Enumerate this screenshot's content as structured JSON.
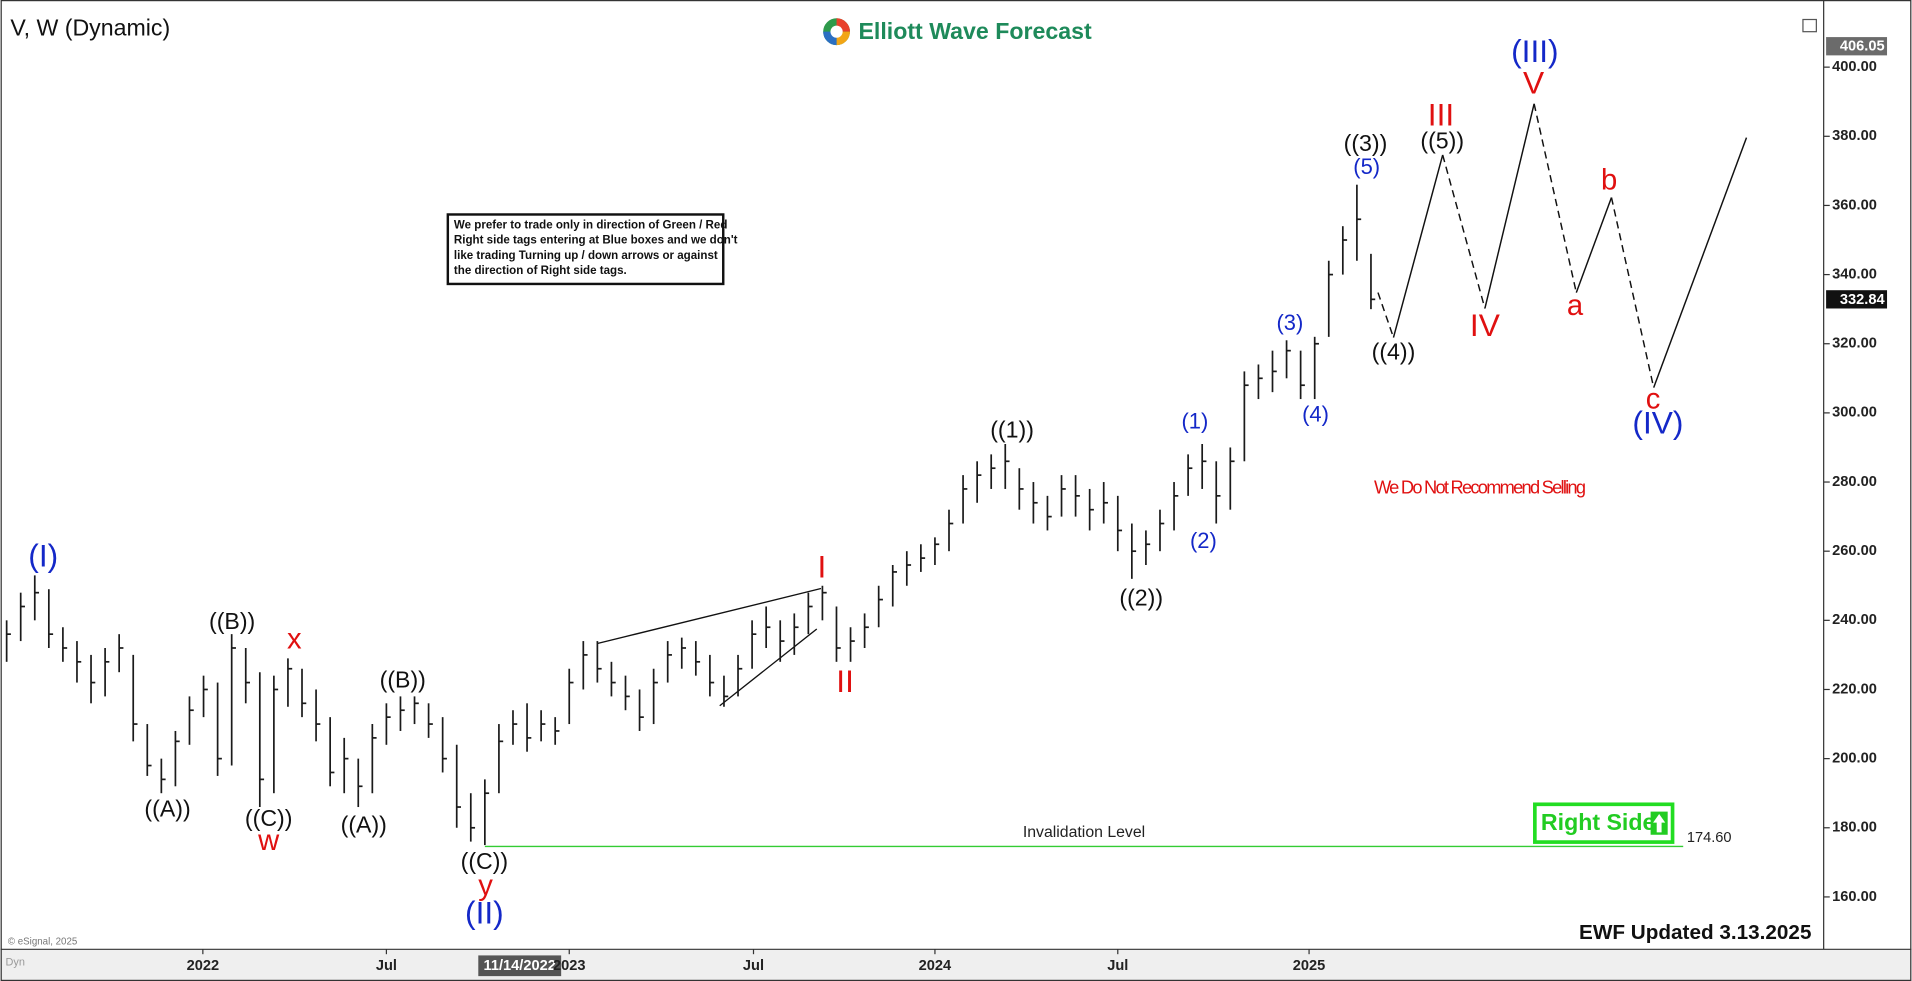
{
  "chart_data": {
    "type": "ohlc",
    "title": "V, W (Dynamic)",
    "brand": "Elliott Wave Forecast",
    "note": [
      "We prefer to trade only in direction of Green / Red",
      "Right side tags entering at Blue boxes and we don't",
      "like trading Turning up / down arrows or against",
      "the direction of Right side tags."
    ],
    "warning": "We Do Not Recommend Selling",
    "right_side": "Right Side",
    "updated": "EWF Updated 3.13.2025",
    "copyright": "© eSignal, 2025",
    "corner": "Dyn",
    "cursor_date": "11/14/2022",
    "color": "#1a1a1a",
    "bars": {
      "high": [
        240,
        248,
        253,
        249,
        238,
        234,
        230,
        232,
        236,
        230,
        210,
        200,
        208,
        218,
        224,
        222,
        236,
        232,
        225,
        224,
        229,
        226,
        220,
        212,
        206,
        200,
        210,
        216,
        218,
        218,
        216,
        212,
        204,
        190,
        194,
        210,
        214,
        216,
        214,
        212,
        226,
        234,
        234,
        228,
        224,
        220,
        226,
        234,
        235,
        234,
        230,
        224,
        230,
        240,
        244,
        240,
        242,
        248,
        250,
        244,
        238,
        242,
        250,
        256,
        260,
        262,
        264,
        272,
        282,
        286,
        288,
        291,
        284,
        280,
        276,
        282,
        282,
        278,
        280,
        276,
        268,
        266,
        272,
        280,
        288,
        291,
        286,
        290,
        312,
        314,
        318,
        321,
        318,
        322,
        344,
        354,
        366,
        346
      ],
      "low": [
        228,
        234,
        240,
        232,
        228,
        222,
        216,
        218,
        225,
        205,
        195,
        190,
        192,
        204,
        212,
        195,
        198,
        216,
        186,
        190,
        215,
        212,
        205,
        192,
        190,
        186,
        190,
        204,
        208,
        210,
        206,
        196,
        180,
        176,
        175,
        190,
        204,
        202,
        205,
        204,
        210,
        220,
        222,
        218,
        214,
        208,
        210,
        222,
        226,
        224,
        218,
        215,
        218,
        226,
        232,
        228,
        230,
        236,
        240,
        228,
        228,
        232,
        238,
        244,
        250,
        254,
        256,
        260,
        268,
        274,
        278,
        278,
        272,
        268,
        266,
        270,
        270,
        266,
        268,
        260,
        252,
        256,
        260,
        266,
        276,
        278,
        268,
        272,
        286,
        304,
        306,
        310,
        304,
        304,
        322,
        340,
        344,
        330
      ],
      "close": [
        236,
        244,
        248,
        236,
        232,
        228,
        222,
        228,
        232,
        210,
        198,
        194,
        205,
        214,
        220,
        200,
        232,
        222,
        194,
        220,
        226,
        216,
        210,
        196,
        200,
        192,
        206,
        212,
        214,
        216,
        210,
        200,
        186,
        180,
        190,
        205,
        210,
        206,
        210,
        208,
        222,
        230,
        226,
        222,
        218,
        212,
        222,
        230,
        232,
        228,
        222,
        218,
        226,
        236,
        238,
        234,
        238,
        244,
        248,
        232,
        234,
        238,
        246,
        254,
        256,
        258,
        262,
        268,
        278,
        282,
        284,
        286,
        278,
        274,
        270,
        278,
        276,
        272,
        274,
        266,
        260,
        262,
        268,
        276,
        284,
        286,
        276,
        286,
        308,
        310,
        312,
        318,
        308,
        320,
        340,
        350,
        356,
        332.84
      ]
    },
    "projection": {
      "x": [
        97.5,
        98.6,
        102.1,
        105.1,
        108.6,
        111.6,
        114.1,
        117.1,
        123.7
      ],
      "values": [
        334.8,
        321.8,
        374.6,
        330.2,
        389.4,
        334.8,
        362.3,
        307.3,
        379.6
      ]
    },
    "trendlines": [
      {
        "x": [
          42.0,
          57.9
        ],
        "values": [
          233.3,
          249.2
        ]
      },
      {
        "x": [
          50.7,
          57.6
        ],
        "values": [
          215.3,
          237.5
        ]
      }
    ],
    "invalidation": {
      "label": "Invalidation Level",
      "value": 174.6,
      "value_label": "174.60",
      "x": [
        34,
        119.2
      ]
    },
    "price_tags": [
      {
        "value": 406.05,
        "color": "#6b6b6b"
      },
      {
        "value": 332.84,
        "color": "#111111"
      }
    ],
    "wave_labels": [
      {
        "text": "(I)",
        "color": "#1428c8"
      },
      {
        "text": "(II)",
        "color": "#1428c8"
      },
      {
        "text": "(III)",
        "color": "#1428c8"
      },
      {
        "text": "(IV)",
        "color": "#1428c8"
      },
      {
        "text": "V",
        "color": "#e01010"
      },
      {
        "text": "III",
        "color": "#e01010"
      },
      {
        "text": "IV",
        "color": "#e01010"
      },
      {
        "text": "I",
        "color": "#e01010"
      },
      {
        "text": "II",
        "color": "#e01010"
      },
      {
        "text": "a",
        "color": "#e01010"
      },
      {
        "text": "b",
        "color": "#e01010"
      },
      {
        "text": "c",
        "color": "#e01010"
      },
      {
        "text": "x",
        "color": "#e01010"
      },
      {
        "text": "w",
        "color": "#e01010"
      },
      {
        "text": "y",
        "color": "#e01010"
      },
      {
        "text": "((A))",
        "color": "#111111"
      },
      {
        "text": "((B))",
        "color": "#111111"
      },
      {
        "text": "((C))",
        "color": "#111111"
      },
      {
        "text": "((A))",
        "color": "#111111"
      },
      {
        "text": "((B))",
        "color": "#111111"
      },
      {
        "text": "((C))",
        "color": "#111111"
      },
      {
        "text": "((1))",
        "color": "#111111"
      },
      {
        "text": "((2))",
        "color": "#111111"
      },
      {
        "text": "((3))",
        "color": "#111111"
      },
      {
        "text": "((5))",
        "color": "#111111"
      },
      {
        "text": "((4))",
        "color": "#111111"
      },
      {
        "text": "(5)",
        "color": "#1428c8"
      },
      {
        "text": "(3)",
        "color": "#1428c8"
      },
      {
        "text": "(4)",
        "color": "#1428c8"
      },
      {
        "text": "(1)",
        "color": "#1428c8"
      },
      {
        "text": "(2)",
        "color": "#1428c8"
      }
    ],
    "xlim": [
      -0.43,
      129.1
    ],
    "ylim": [
      145.2,
      416.6
    ],
    "xticks": [
      {
        "value": 13.95,
        "label": "2022"
      },
      {
        "value": 27,
        "label": "Jul"
      },
      {
        "value": 40,
        "label": "2023"
      },
      {
        "value": 53.1,
        "label": "Jul"
      },
      {
        "value": 66,
        "label": "2024"
      },
      {
        "value": 79,
        "label": "Jul"
      },
      {
        "value": 92.6,
        "label": "2025"
      }
    ],
    "yticks": [
      {
        "value": 160,
        "label": "160.00"
      },
      {
        "value": 180,
        "label": "180.00"
      },
      {
        "value": 200,
        "label": "200.00"
      },
      {
        "value": 220,
        "label": "220.00"
      },
      {
        "value": 240,
        "label": "240.00"
      },
      {
        "value": 260,
        "label": "260.00"
      },
      {
        "value": 280,
        "label": "280.00"
      },
      {
        "value": 300,
        "label": "300.00"
      },
      {
        "value": 320,
        "label": "320.00"
      },
      {
        "value": 340,
        "label": "340.00"
      },
      {
        "value": 360,
        "label": "360.00"
      },
      {
        "value": 380,
        "label": "380.00"
      },
      {
        "value": 400,
        "label": "400.00"
      }
    ]
  }
}
